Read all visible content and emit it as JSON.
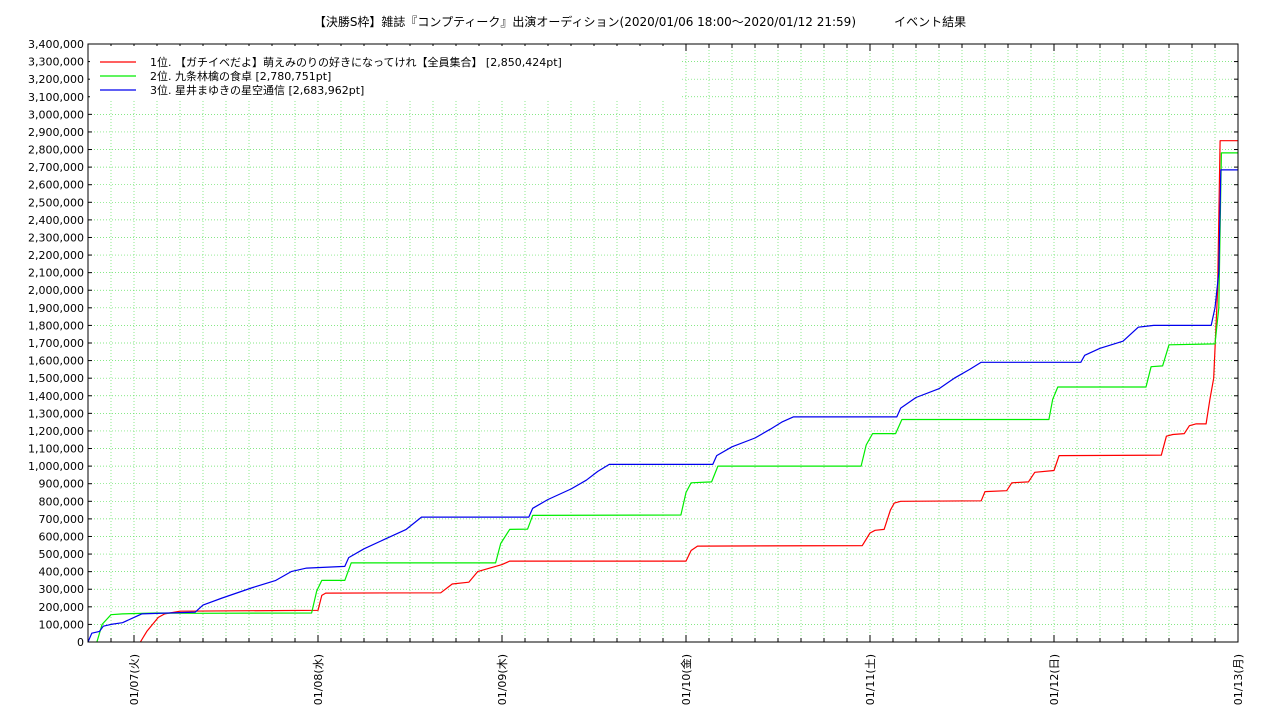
{
  "chart_data": {
    "type": "line",
    "title": "【決勝S枠】雑誌『コンプティーク』出演オーディション(2020/01/06 18:00～2020/01/12 21:59)",
    "title_suffix": "イベント結果",
    "xlabel": "",
    "ylabel": "",
    "x_type": "time",
    "xlim": [
      "2020-01-06 18:00",
      "2020-01-13 00:00"
    ],
    "ylim": [
      0,
      3400000
    ],
    "y_tick_step": 100000,
    "grid": true,
    "legend_position": "top-left",
    "x_ticks": [
      {
        "t": "2020-01-07 00:00",
        "label": "01/07(火)"
      },
      {
        "t": "2020-01-08 00:00",
        "label": "01/08(水)"
      },
      {
        "t": "2020-01-09 00:00",
        "label": "01/09(木)"
      },
      {
        "t": "2020-01-10 00:00",
        "label": "01/10(金)"
      },
      {
        "t": "2020-01-11 00:00",
        "label": "01/11(土)"
      },
      {
        "t": "2020-01-12 00:00",
        "label": "01/12(日)"
      },
      {
        "t": "2020-01-13 00:00",
        "label": "01/13(月)"
      }
    ],
    "series": [
      {
        "name": "1位. 【ガチイベだよ】萌えみのりの好きになってけれ【全員集合】 [2,850,424pt]",
        "color": "#ff0000",
        "points": [
          [
            "2020-01-07 00:50",
            0
          ],
          [
            "2020-01-07 01:40",
            60000
          ],
          [
            "2020-01-07 03:10",
            140000
          ],
          [
            "2020-01-07 04:00",
            160000
          ],
          [
            "2020-01-07 06:00",
            175000
          ],
          [
            "2020-01-08 00:00",
            180000
          ],
          [
            "2020-01-08 00:30",
            265000
          ],
          [
            "2020-01-08 01:00",
            278000
          ],
          [
            "2020-01-08 16:00",
            280000
          ],
          [
            "2020-01-08 17:30",
            330000
          ],
          [
            "2020-01-08 19:40",
            340000
          ],
          [
            "2020-01-08 20:50",
            400000
          ],
          [
            "2020-01-09 00:00",
            440000
          ],
          [
            "2020-01-09 01:00",
            460000
          ],
          [
            "2020-01-10 00:00",
            460000
          ],
          [
            "2020-01-10 00:40",
            520000
          ],
          [
            "2020-01-10 01:30",
            545000
          ],
          [
            "2020-01-10 23:00",
            548000
          ],
          [
            "2020-01-11 00:00",
            620000
          ],
          [
            "2020-01-11 00:40",
            635000
          ],
          [
            "2020-01-11 01:50",
            640000
          ],
          [
            "2020-01-11 02:40",
            750000
          ],
          [
            "2020-01-11 03:10",
            790000
          ],
          [
            "2020-01-11 04:00",
            800000
          ],
          [
            "2020-01-11 14:30",
            803000
          ],
          [
            "2020-01-11 15:00",
            855000
          ],
          [
            "2020-01-11 17:50",
            860000
          ],
          [
            "2020-01-11 18:30",
            905000
          ],
          [
            "2020-01-11 20:40",
            910000
          ],
          [
            "2020-01-11 21:30",
            965000
          ],
          [
            "2020-01-12 00:00",
            975000
          ],
          [
            "2020-01-12 00:40",
            1060000
          ],
          [
            "2020-01-12 14:00",
            1062000
          ],
          [
            "2020-01-12 14:40",
            1170000
          ],
          [
            "2020-01-12 15:30",
            1180000
          ],
          [
            "2020-01-12 17:00",
            1185000
          ],
          [
            "2020-01-12 17:40",
            1230000
          ],
          [
            "2020-01-12 18:30",
            1240000
          ],
          [
            "2020-01-12 19:50",
            1240000
          ],
          [
            "2020-01-12 20:20",
            1380000
          ],
          [
            "2020-01-12 20:50",
            1500000
          ],
          [
            "2020-01-12 21:20",
            2000000
          ],
          [
            "2020-01-12 21:40",
            2850424
          ],
          [
            "2020-01-13 00:00",
            2850424
          ]
        ]
      },
      {
        "name": "2位. 九条林檎の食卓 [2,780,751pt]",
        "color": "#00ee00",
        "points": [
          [
            "2020-01-06 19:10",
            0
          ],
          [
            "2020-01-06 19:50",
            100000
          ],
          [
            "2020-01-06 21:00",
            155000
          ],
          [
            "2020-01-06 22:30",
            160000
          ],
          [
            "2020-01-07 03:00",
            165000
          ],
          [
            "2020-01-07 08:00",
            163000
          ],
          [
            "2020-01-07 23:10",
            165000
          ],
          [
            "2020-01-07 23:50",
            290000
          ],
          [
            "2020-01-08 00:30",
            350000
          ],
          [
            "2020-01-08 03:30",
            350000
          ],
          [
            "2020-01-08 04:20",
            450000
          ],
          [
            "2020-01-08 23:10",
            450000
          ],
          [
            "2020-01-08 23:50",
            560000
          ],
          [
            "2020-01-09 01:00",
            640000
          ],
          [
            "2020-01-09 03:20",
            642000
          ],
          [
            "2020-01-09 04:00",
            720000
          ],
          [
            "2020-01-09 23:20",
            722000
          ],
          [
            "2020-01-10 00:00",
            850000
          ],
          [
            "2020-01-10 00:40",
            905000
          ],
          [
            "2020-01-10 03:20",
            910000
          ],
          [
            "2020-01-10 04:10",
            1000000
          ],
          [
            "2020-01-10 22:50",
            1000000
          ],
          [
            "2020-01-10 23:30",
            1120000
          ],
          [
            "2020-01-11 00:20",
            1185000
          ],
          [
            "2020-01-11 03:20",
            1185000
          ],
          [
            "2020-01-11 04:10",
            1265000
          ],
          [
            "2020-01-11 23:20",
            1265000
          ],
          [
            "2020-01-11 23:50",
            1380000
          ],
          [
            "2020-01-12 00:30",
            1450000
          ],
          [
            "2020-01-12 12:00",
            1450000
          ],
          [
            "2020-01-12 12:40",
            1565000
          ],
          [
            "2020-01-12 14:10",
            1570000
          ],
          [
            "2020-01-12 15:00",
            1690000
          ],
          [
            "2020-01-12 21:00",
            1695000
          ],
          [
            "2020-01-12 21:30",
            1900000
          ],
          [
            "2020-01-12 21:50",
            2780751
          ],
          [
            "2020-01-13 00:00",
            2780751
          ]
        ]
      },
      {
        "name": "3位. 星井まゆきの星空通信 [2,683,962pt]",
        "color": "#0000ee",
        "points": [
          [
            "2020-01-06 18:00",
            0
          ],
          [
            "2020-01-06 18:30",
            50000
          ],
          [
            "2020-01-06 19:30",
            60000
          ],
          [
            "2020-01-06 20:00",
            90000
          ],
          [
            "2020-01-06 21:00",
            100000
          ],
          [
            "2020-01-06 22:30",
            110000
          ],
          [
            "2020-01-07 00:00",
            140000
          ],
          [
            "2020-01-07 01:00",
            160000
          ],
          [
            "2020-01-07 08:00",
            170000
          ],
          [
            "2020-01-07 09:00",
            210000
          ],
          [
            "2020-01-07 11:30",
            250000
          ],
          [
            "2020-01-07 15:30",
            310000
          ],
          [
            "2020-01-07 18:30",
            350000
          ],
          [
            "2020-01-07 20:30",
            400000
          ],
          [
            "2020-01-07 22:30",
            420000
          ],
          [
            "2020-01-08 03:30",
            430000
          ],
          [
            "2020-01-08 04:00",
            480000
          ],
          [
            "2020-01-08 06:00",
            530000
          ],
          [
            "2020-01-08 09:00",
            590000
          ],
          [
            "2020-01-08 11:30",
            640000
          ],
          [
            "2020-01-08 13:30",
            710000
          ],
          [
            "2020-01-09 03:30",
            710000
          ],
          [
            "2020-01-09 04:00",
            760000
          ],
          [
            "2020-01-09 06:00",
            810000
          ],
          [
            "2020-01-09 09:00",
            870000
          ],
          [
            "2020-01-09 11:00",
            920000
          ],
          [
            "2020-01-09 12:30",
            970000
          ],
          [
            "2020-01-09 14:00",
            1010000
          ],
          [
            "2020-01-10 03:30",
            1010000
          ],
          [
            "2020-01-10 04:00",
            1060000
          ],
          [
            "2020-01-10 06:00",
            1110000
          ],
          [
            "2020-01-10 09:00",
            1160000
          ],
          [
            "2020-01-10 11:00",
            1210000
          ],
          [
            "2020-01-10 12:30",
            1250000
          ],
          [
            "2020-01-10 14:00",
            1280000
          ],
          [
            "2020-01-11 03:30",
            1280000
          ],
          [
            "2020-01-11 04:00",
            1330000
          ],
          [
            "2020-01-11 06:00",
            1390000
          ],
          [
            "2020-01-11 09:00",
            1440000
          ],
          [
            "2020-01-11 11:00",
            1500000
          ],
          [
            "2020-01-11 13:00",
            1550000
          ],
          [
            "2020-01-11 14:30",
            1590000
          ],
          [
            "2020-01-12 03:30",
            1590000
          ],
          [
            "2020-01-12 04:00",
            1630000
          ],
          [
            "2020-01-12 06:00",
            1670000
          ],
          [
            "2020-01-12 09:00",
            1710000
          ],
          [
            "2020-01-12 11:00",
            1790000
          ],
          [
            "2020-01-12 13:00",
            1800000
          ],
          [
            "2020-01-12 20:30",
            1800000
          ],
          [
            "2020-01-12 21:00",
            1900000
          ],
          [
            "2020-01-12 21:30",
            2100000
          ],
          [
            "2020-01-12 21:45",
            2683962
          ],
          [
            "2020-01-13 00:00",
            2683962
          ]
        ]
      }
    ]
  }
}
